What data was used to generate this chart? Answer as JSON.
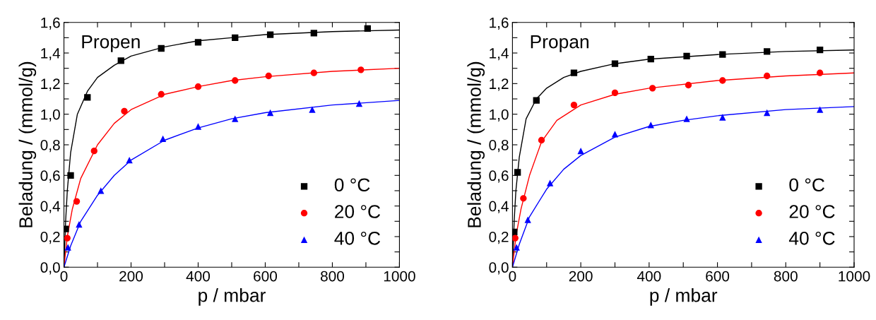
{
  "chart_data": [
    {
      "type": "scatter",
      "xlabel": "p / mbar",
      "ylabel": "Beladung / (mmol/g)",
      "annotations": [
        "Propen"
      ],
      "legend": "bottom right",
      "grid": false,
      "xlim": [
        0,
        1000
      ],
      "ylim": [
        0,
        1.6
      ],
      "xticks": [
        0,
        {
          "value": 100,
          "label": null
        },
        200,
        {
          "value": 300,
          "label": null
        },
        400,
        {
          "value": 500,
          "label": null
        },
        600,
        {
          "value": 700,
          "label": null
        },
        800,
        {
          "value": 900,
          "label": null
        },
        1000
      ],
      "yticks": [
        {
          "value": 0,
          "label": "0,0"
        },
        {
          "value": 0.1,
          "label": null
        },
        {
          "value": 0.2,
          "label": "0,2"
        },
        {
          "value": 0.3,
          "label": null
        },
        {
          "value": 0.4,
          "label": "0,4"
        },
        {
          "value": 0.5,
          "label": null
        },
        {
          "value": 0.6,
          "label": "0,6"
        },
        {
          "value": 0.7,
          "label": null
        },
        {
          "value": 0.8,
          "label": "0,8"
        },
        {
          "value": 0.9,
          "label": null
        },
        {
          "value": 1.0,
          "label": "1,0"
        },
        {
          "value": 1.1,
          "label": null
        },
        {
          "value": 1.2,
          "label": "1,2"
        },
        {
          "value": 1.3,
          "label": null
        },
        {
          "value": 1.4,
          "label": "1,4"
        },
        {
          "value": 1.5,
          "label": null
        },
        {
          "value": 1.6,
          "label": "1,6"
        }
      ],
      "series": [
        {
          "name": "0 °C",
          "color": "#000000",
          "marker": "square",
          "x": [
            5,
            20,
            70,
            170,
            290,
            400,
            510,
            615,
            745,
            905
          ],
          "values": [
            0.25,
            0.6,
            1.11,
            1.35,
            1.43,
            1.47,
            1.5,
            1.52,
            1.53,
            1.56
          ]
        },
        {
          "name": "20 °C",
          "color": "#ff0000",
          "marker": "circle",
          "x": [
            10,
            38,
            90,
            180,
            290,
            400,
            510,
            610,
            745,
            885
          ],
          "values": [
            0.19,
            0.43,
            0.76,
            1.02,
            1.13,
            1.18,
            1.22,
            1.25,
            1.27,
            1.29
          ]
        },
        {
          "name": "40 °C",
          "color": "#0000ff",
          "marker": "triangle",
          "x": [
            12,
            45,
            110,
            195,
            295,
            400,
            510,
            615,
            740,
            880
          ],
          "values": [
            0.13,
            0.28,
            0.5,
            0.7,
            0.84,
            0.92,
            0.97,
            1.01,
            1.03,
            1.07
          ]
        },
        {
          "type": "line",
          "color": "#000000",
          "x": [
            0,
            5,
            10,
            20,
            40,
            70,
            100,
            150,
            200,
            300,
            400,
            500,
            600,
            800,
            1000
          ],
          "values": [
            0,
            0.3,
            0.5,
            0.75,
            1.0,
            1.15,
            1.24,
            1.32,
            1.38,
            1.44,
            1.48,
            1.5,
            1.52,
            1.54,
            1.55
          ]
        },
        {
          "type": "line",
          "color": "#ff0000",
          "x": [
            0,
            10,
            25,
            50,
            100,
            150,
            200,
            300,
            400,
            500,
            600,
            800,
            1000
          ],
          "values": [
            0,
            0.2,
            0.38,
            0.58,
            0.8,
            0.94,
            1.03,
            1.13,
            1.18,
            1.22,
            1.245,
            1.28,
            1.3
          ]
        },
        {
          "type": "line",
          "color": "#0000ff",
          "x": [
            0,
            20,
            50,
            100,
            150,
            200,
            300,
            400,
            500,
            600,
            800,
            1000
          ],
          "values": [
            0,
            0.14,
            0.3,
            0.47,
            0.6,
            0.7,
            0.83,
            0.91,
            0.97,
            1.01,
            1.06,
            1.09
          ]
        }
      ]
    },
    {
      "type": "scatter",
      "xlabel": "p / mbar",
      "ylabel": "Beladung / (mmol/g)",
      "annotations": [
        "Propan"
      ],
      "legend": "bottom right",
      "grid": false,
      "xlim": [
        0,
        1000
      ],
      "ylim": [
        0,
        1.6
      ],
      "xticks": [
        0,
        {
          "value": 100,
          "label": null
        },
        200,
        {
          "value": 300,
          "label": null
        },
        400,
        {
          "value": 500,
          "label": null
        },
        600,
        {
          "value": 700,
          "label": null
        },
        800,
        {
          "value": 900,
          "label": null
        },
        1000
      ],
      "yticks": [
        {
          "value": 0,
          "label": "0,0"
        },
        {
          "value": 0.1,
          "label": null
        },
        {
          "value": 0.2,
          "label": "0,2"
        },
        {
          "value": 0.3,
          "label": null
        },
        {
          "value": 0.4,
          "label": "0,4"
        },
        {
          "value": 0.5,
          "label": null
        },
        {
          "value": 0.6,
          "label": "0,6"
        },
        {
          "value": 0.7,
          "label": null
        },
        {
          "value": 0.8,
          "label": "0,8"
        },
        {
          "value": 0.9,
          "label": null
        },
        {
          "value": 1.0,
          "label": "1,0"
        },
        {
          "value": 1.1,
          "label": null
        },
        {
          "value": 1.2,
          "label": "1,2"
        },
        {
          "value": 1.3,
          "label": null
        },
        {
          "value": 1.4,
          "label": "1,4"
        },
        {
          "value": 1.5,
          "label": null
        },
        {
          "value": 1.6,
          "label": "1,6"
        }
      ],
      "series": [
        {
          "name": "0 °C",
          "color": "#000000",
          "marker": "square",
          "x": [
            5,
            15,
            70,
            180,
            300,
            405,
            510,
            615,
            745,
            900
          ],
          "values": [
            0.23,
            0.62,
            1.09,
            1.27,
            1.33,
            1.36,
            1.38,
            1.39,
            1.41,
            1.42
          ]
        },
        {
          "name": "20 °C",
          "color": "#ff0000",
          "marker": "circle",
          "x": [
            8,
            32,
            85,
            180,
            300,
            410,
            515,
            615,
            745,
            900
          ],
          "values": [
            0.19,
            0.45,
            0.83,
            1.06,
            1.14,
            1.17,
            1.19,
            1.22,
            1.25,
            1.27
          ]
        },
        {
          "name": "40 °C",
          "color": "#0000ff",
          "marker": "triangle",
          "x": [
            12,
            45,
            110,
            200,
            300,
            405,
            510,
            615,
            745,
            900
          ],
          "values": [
            0.13,
            0.31,
            0.55,
            0.76,
            0.87,
            0.93,
            0.97,
            0.98,
            1.01,
            1.03
          ]
        },
        {
          "type": "line",
          "color": "#000000",
          "x": [
            0,
            5,
            10,
            20,
            40,
            70,
            100,
            150,
            200,
            300,
            400,
            600,
            800,
            1000
          ],
          "values": [
            0,
            0.3,
            0.5,
            0.72,
            0.97,
            1.1,
            1.17,
            1.24,
            1.28,
            1.33,
            1.36,
            1.39,
            1.41,
            1.42
          ]
        },
        {
          "type": "line",
          "color": "#ff0000",
          "x": [
            0,
            10,
            25,
            50,
            85,
            130,
            200,
            300,
            400,
            600,
            800,
            1000
          ],
          "values": [
            0,
            0.2,
            0.38,
            0.6,
            0.82,
            0.96,
            1.06,
            1.13,
            1.17,
            1.22,
            1.25,
            1.27
          ]
        },
        {
          "type": "line",
          "color": "#0000ff",
          "x": [
            0,
            20,
            50,
            100,
            150,
            200,
            300,
            400,
            500,
            600,
            800,
            1000
          ],
          "values": [
            0,
            0.15,
            0.33,
            0.51,
            0.64,
            0.73,
            0.85,
            0.92,
            0.96,
            0.99,
            1.03,
            1.05
          ]
        }
      ]
    }
  ]
}
